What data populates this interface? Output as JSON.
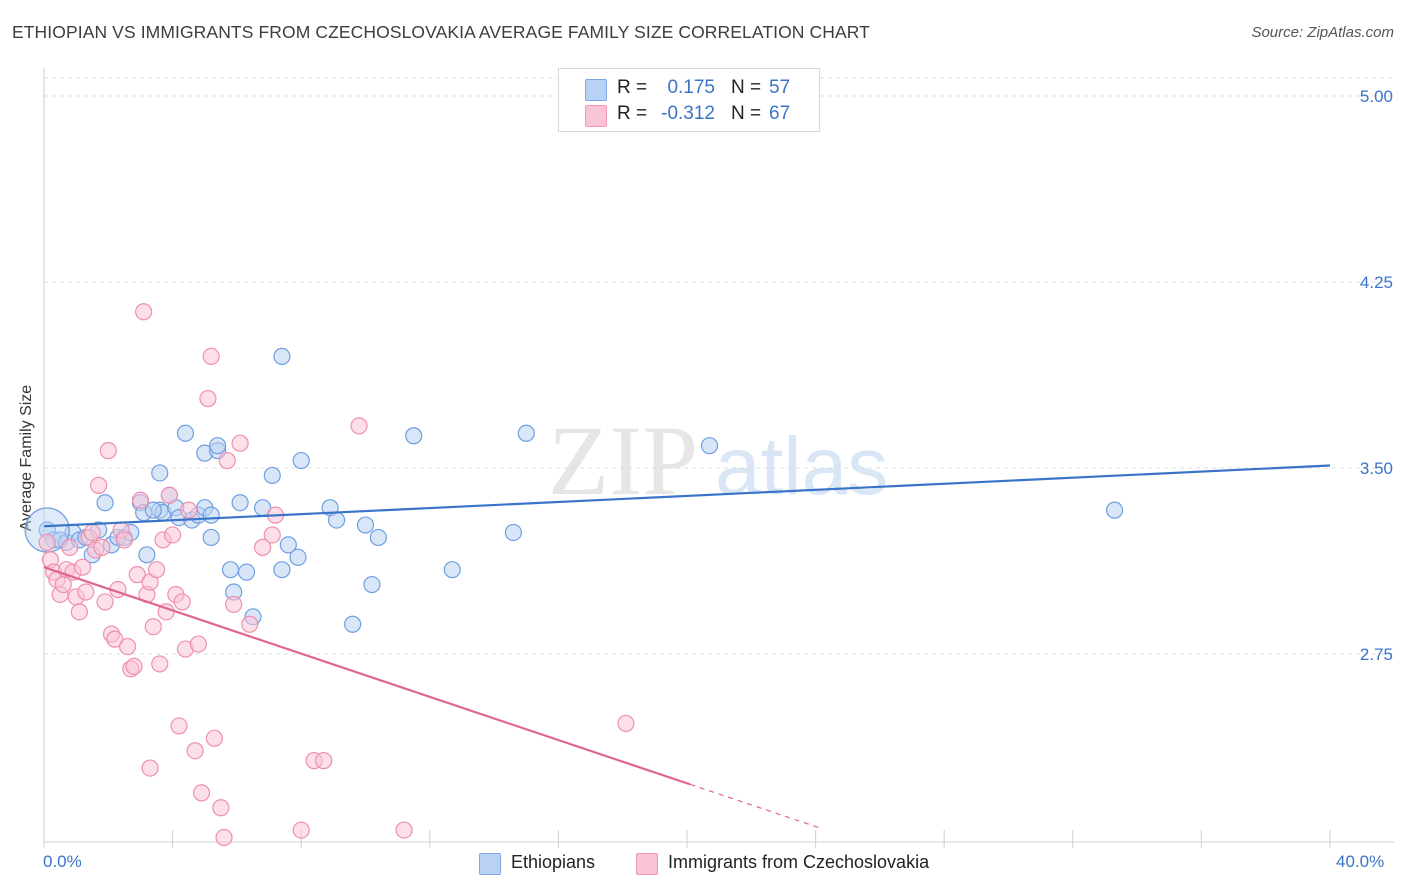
{
  "title": "ETHIOPIAN VS IMMIGRANTS FROM CZECHOSLOVAKIA AVERAGE FAMILY SIZE CORRELATION CHART",
  "source": "Source: ZipAtlas.com",
  "watermark": {
    "zip": "ZIP",
    "atlas": "atlas"
  },
  "legend": {
    "rows": [
      {
        "r_label": "R =",
        "r_value": "0.175",
        "n_label": "N =",
        "n_value": "57",
        "color": "#a8c6f0"
      },
      {
        "r_label": "R =",
        "r_value": "-0.312",
        "n_label": "N =",
        "n_value": "67",
        "color": "#f7b6cb"
      }
    ]
  },
  "x_axis": {
    "min_label": "0.0%",
    "max_label": "40.0%"
  },
  "chart_data": {
    "type": "scatter",
    "title": "ETHIOPIAN VS IMMIGRANTS FROM CZECHOSLOVAKIA AVERAGE FAMILY SIZE CORRELATION CHART",
    "xlabel": "",
    "ylabel": "Average Family Size",
    "xlim": [
      0,
      40
    ],
    "ylim": [
      2.02,
      5.1
    ],
    "yticks": [
      2.75,
      3.5,
      4.25,
      5.0
    ],
    "ytick_labels": [
      "2.75",
      "3.50",
      "4.25",
      "5.00"
    ],
    "xtick_labels": [
      "0.0%",
      "40.0%"
    ],
    "series": [
      {
        "name": "Ethiopians",
        "color": "#6f9fe0",
        "fill": "#b9d2f3",
        "trend_color": "#3a74c9",
        "trend": {
          "x": [
            0,
            40
          ],
          "y": [
            3.265,
            3.51
          ],
          "dash_from": null
        },
        "points": [
          [
            0.1,
            3.25
          ],
          [
            0.3,
            3.21
          ],
          [
            0.5,
            3.21
          ],
          [
            0.7,
            3.2
          ],
          [
            0.9,
            3.24
          ],
          [
            1.1,
            3.21
          ],
          [
            1.3,
            3.22
          ],
          [
            1.5,
            3.15
          ],
          [
            1.7,
            3.25
          ],
          [
            1.9,
            3.36
          ],
          [
            2.1,
            3.19
          ],
          [
            2.3,
            3.22
          ],
          [
            2.5,
            3.22
          ],
          [
            2.7,
            3.24
          ],
          [
            3.0,
            3.36
          ],
          [
            3.1,
            3.32
          ],
          [
            3.2,
            3.15
          ],
          [
            3.6,
            3.33
          ],
          [
            3.7,
            3.32
          ],
          [
            3.6,
            3.48
          ],
          [
            3.9,
            3.39
          ],
          [
            4.1,
            3.34
          ],
          [
            4.2,
            3.3
          ],
          [
            4.4,
            3.64
          ],
          [
            4.6,
            3.29
          ],
          [
            4.8,
            3.31
          ],
          [
            5.0,
            3.34
          ],
          [
            5.0,
            3.56
          ],
          [
            5.2,
            3.22
          ],
          [
            5.2,
            3.31
          ],
          [
            5.4,
            3.57
          ],
          [
            5.4,
            3.59
          ],
          [
            5.8,
            3.09
          ],
          [
            5.9,
            3.0
          ],
          [
            6.1,
            3.36
          ],
          [
            6.3,
            3.08
          ],
          [
            6.5,
            2.9
          ],
          [
            6.8,
            3.34
          ],
          [
            7.1,
            3.47
          ],
          [
            7.4,
            3.95
          ],
          [
            7.4,
            3.09
          ],
          [
            7.6,
            3.19
          ],
          [
            7.9,
            3.14
          ],
          [
            8.0,
            3.53
          ],
          [
            8.9,
            3.34
          ],
          [
            9.1,
            3.29
          ],
          [
            9.6,
            2.87
          ],
          [
            10.0,
            3.27
          ],
          [
            10.2,
            3.03
          ],
          [
            10.4,
            3.22
          ],
          [
            11.5,
            3.63
          ],
          [
            12.7,
            3.09
          ],
          [
            14.6,
            3.24
          ],
          [
            15.0,
            3.64
          ],
          [
            20.7,
            3.59
          ],
          [
            33.3,
            3.33
          ],
          [
            3.4,
            3.33
          ]
        ]
      },
      {
        "name": "Immigrants from Czechoslovakia",
        "color": "#ee8fb0",
        "fill": "#f9c4d5",
        "trend_color": "#e0668f",
        "trend": {
          "x": [
            0,
            24.1
          ],
          "y": [
            3.1,
            2.05
          ],
          "dash_from": 20.1
        },
        "points": [
          [
            0.1,
            3.2
          ],
          [
            0.2,
            3.13
          ],
          [
            0.3,
            3.08
          ],
          [
            0.4,
            3.05
          ],
          [
            0.5,
            2.99
          ],
          [
            0.6,
            3.03
          ],
          [
            0.7,
            3.09
          ],
          [
            0.8,
            3.18
          ],
          [
            0.9,
            3.08
          ],
          [
            1.0,
            2.98
          ],
          [
            1.1,
            2.92
          ],
          [
            1.2,
            3.1
          ],
          [
            1.3,
            3.0
          ],
          [
            1.4,
            3.22
          ],
          [
            1.5,
            3.24
          ],
          [
            1.6,
            3.17
          ],
          [
            1.7,
            3.43
          ],
          [
            1.8,
            3.18
          ],
          [
            1.9,
            2.96
          ],
          [
            2.0,
            3.57
          ],
          [
            2.1,
            2.83
          ],
          [
            2.2,
            2.81
          ],
          [
            2.3,
            3.01
          ],
          [
            2.4,
            3.25
          ],
          [
            2.5,
            3.21
          ],
          [
            2.6,
            2.78
          ],
          [
            2.7,
            2.69
          ],
          [
            2.8,
            2.7
          ],
          [
            2.9,
            3.07
          ],
          [
            3.0,
            3.37
          ],
          [
            3.1,
            4.13
          ],
          [
            3.2,
            2.99
          ],
          [
            3.3,
            3.04
          ],
          [
            3.3,
            2.29
          ],
          [
            3.4,
            2.86
          ],
          [
            3.5,
            3.09
          ],
          [
            3.6,
            2.71
          ],
          [
            3.7,
            3.21
          ],
          [
            3.8,
            2.92
          ],
          [
            3.9,
            3.39
          ],
          [
            4.0,
            3.23
          ],
          [
            4.1,
            2.99
          ],
          [
            4.2,
            2.46
          ],
          [
            4.3,
            2.96
          ],
          [
            4.4,
            2.77
          ],
          [
            4.5,
            3.33
          ],
          [
            4.7,
            2.36
          ],
          [
            4.8,
            2.79
          ],
          [
            4.9,
            2.19
          ],
          [
            5.1,
            3.78
          ],
          [
            5.2,
            3.95
          ],
          [
            5.3,
            2.41
          ],
          [
            5.5,
            2.13
          ],
          [
            5.6,
            2.01
          ],
          [
            5.7,
            3.53
          ],
          [
            5.9,
            2.95
          ],
          [
            6.1,
            3.6
          ],
          [
            6.4,
            2.87
          ],
          [
            6.8,
            3.18
          ],
          [
            7.1,
            3.23
          ],
          [
            7.2,
            3.31
          ],
          [
            8.0,
            2.04
          ],
          [
            8.4,
            2.32
          ],
          [
            8.7,
            2.32
          ],
          [
            9.8,
            3.67
          ],
          [
            11.2,
            2.04
          ],
          [
            18.1,
            2.47
          ]
        ]
      }
    ]
  }
}
